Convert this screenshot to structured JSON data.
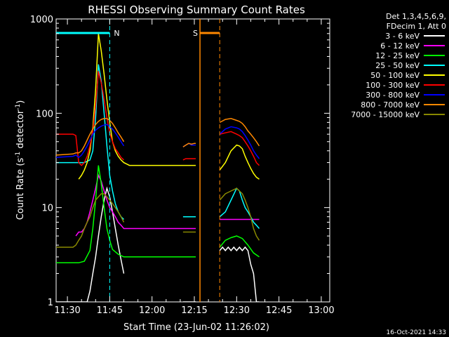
{
  "chart_data": {
    "type": "line",
    "title": "RHESSI Observing Summary Count Rates",
    "xlabel": "Start Time (23-Jun-02 11:26:02)",
    "ylabel_main": "Count Rate (s",
    "ylabel_sup1": "-1",
    "ylabel_mid": " detector",
    "ylabel_sup2": "-1",
    "ylabel_end": ")",
    "x_unit": "minutes after 11:26:02",
    "xlim": [
      0,
      97
    ],
    "ylim": [
      1,
      1000
    ],
    "yscale": "log",
    "x_ticks": [
      {
        "label": "11:30",
        "x": 4
      },
      {
        "label": "11:45",
        "x": 19
      },
      {
        "label": "12:00",
        "x": 34
      },
      {
        "label": "12:15",
        "x": 49
      },
      {
        "label": "12:30",
        "x": 64
      },
      {
        "label": "12:45",
        "x": 79
      },
      {
        "label": "13:00",
        "x": 94
      }
    ],
    "y_ticks": [
      {
        "label": "1",
        "y": 1
      },
      {
        "label": "10",
        "y": 10
      },
      {
        "label": "100",
        "y": 100
      },
      {
        "label": "1000",
        "y": 1000
      }
    ],
    "legend_header": [
      "Det 1,3,4,5,6,9,",
      "FDecim 1, Att 0"
    ],
    "legend_position": "top-right (outside plot)",
    "footer_date": "16-Oct-2021 14:33",
    "gaps": [
      [
        24,
        45
      ],
      [
        49.5,
        58
      ],
      [
        72,
        77
      ]
    ],
    "series": [
      {
        "name": "3 - 6 keV",
        "color": "#ffffff",
        "x": [
          0,
          6,
          7,
          8,
          9,
          10,
          11,
          12,
          13,
          14,
          15,
          16,
          17,
          18,
          19,
          20,
          21,
          22,
          23,
          24,
          45,
          46,
          47,
          48,
          49,
          49.5,
          58,
          59,
          60,
          61,
          62,
          63,
          64,
          65,
          66,
          67,
          68,
          69,
          70,
          71,
          72
        ],
        "y": [
          1,
          1,
          1,
          1,
          1,
          1,
          1,
          1.3,
          2,
          3,
          5,
          8,
          12,
          16,
          13,
          9,
          6,
          4,
          2.8,
          2,
          1,
          1,
          1,
          1,
          1,
          1,
          3.5,
          3.8,
          3.5,
          3.8,
          3.5,
          3.8,
          3.5,
          3.8,
          3.5,
          3.8,
          3.5,
          2.5,
          2,
          1,
          1
        ]
      },
      {
        "name": "6 - 12 keV",
        "color": "#ff00ff",
        "x": [
          7,
          8,
          9,
          10,
          11,
          12,
          13,
          14,
          15,
          16,
          17,
          18,
          19,
          20,
          21,
          22,
          23,
          24,
          25,
          26,
          45,
          46,
          47,
          48,
          49,
          49.5,
          58,
          60,
          62,
          64,
          66,
          68,
          70,
          72
        ],
        "y": [
          5,
          5.5,
          5.5,
          6,
          7,
          9,
          12,
          16,
          22,
          19,
          15,
          12,
          10,
          9,
          8,
          7,
          6.5,
          6,
          6,
          6,
          6,
          6,
          6,
          6,
          6,
          6,
          7.5,
          7.5,
          7.5,
          7.5,
          7.5,
          7.5,
          7.5,
          7.5
        ]
      },
      {
        "name": "12 - 25 keV",
        "color": "#00ff00",
        "x": [
          0,
          6,
          8,
          10,
          12,
          13,
          14,
          15,
          16,
          17,
          18,
          19,
          20,
          22,
          24,
          26,
          45,
          47,
          49,
          49.5,
          58,
          60,
          62,
          64,
          66,
          68,
          70,
          72
        ],
        "y": [
          2.6,
          2.6,
          2.6,
          2.7,
          3.5,
          6,
          12,
          28,
          18,
          10,
          6,
          4.5,
          3.6,
          3.2,
          3.0,
          3.0,
          3.0,
          3.0,
          3.0,
          3.0,
          3.8,
          4.5,
          4.8,
          5,
          4.7,
          4,
          3.3,
          3.0
        ]
      },
      {
        "name": "25 - 50 keV",
        "color": "#00ffff",
        "x": [
          0,
          6,
          7,
          8,
          10,
          12,
          13,
          14,
          15,
          16,
          17,
          18,
          19,
          20,
          21,
          22,
          23,
          24,
          45,
          46,
          47,
          48,
          49,
          49.5,
          58,
          60,
          62,
          64,
          65,
          66,
          67,
          68,
          69,
          70,
          71,
          72
        ],
        "y": [
          30,
          30,
          30,
          30,
          30,
          32,
          40,
          90,
          330,
          220,
          100,
          45,
          22,
          15,
          11,
          9,
          8,
          7.5,
          8,
          8,
          8,
          8,
          8,
          8,
          8,
          9,
          12,
          16,
          15,
          12,
          10,
          9,
          8,
          7,
          6.5,
          6
        ]
      },
      {
        "name": "50 - 100 keV",
        "color": "#ffff00",
        "x": [
          8,
          9,
          10,
          11,
          12,
          13,
          14,
          15,
          16,
          17,
          18,
          19,
          20,
          21,
          22,
          23,
          24,
          25,
          26,
          45,
          46,
          47,
          48,
          49,
          49.5,
          58,
          60,
          62,
          64,
          65,
          66,
          67,
          68,
          69,
          70,
          71,
          72
        ],
        "y": [
          20,
          22,
          25,
          30,
          40,
          70,
          180,
          700,
          460,
          260,
          140,
          80,
          50,
          40,
          35,
          32,
          30,
          29,
          28,
          28,
          28,
          28,
          28,
          28,
          28,
          25,
          30,
          40,
          46,
          45,
          42,
          35,
          30,
          26,
          23,
          21,
          20
        ]
      },
      {
        "name": "100 - 300 keV",
        "color": "#ff0000",
        "x": [
          0,
          6,
          7,
          8,
          9,
          10,
          11,
          12,
          13,
          14,
          15,
          16,
          17,
          18,
          19,
          20,
          21,
          22,
          23,
          24,
          45,
          46,
          47,
          48,
          49,
          49.5,
          58,
          60,
          62,
          64,
          65,
          66,
          67,
          68,
          69,
          70,
          71,
          72
        ],
        "y": [
          60,
          60,
          58,
          30,
          28,
          30,
          35,
          45,
          65,
          120,
          280,
          210,
          140,
          90,
          62,
          50,
          42,
          38,
          34,
          32,
          32,
          33,
          33,
          33,
          33,
          33,
          60,
          62,
          64,
          60,
          58,
          55,
          50,
          45,
          40,
          35,
          30,
          28
        ]
      },
      {
        "name": "300 - 800 keV",
        "color": "#0000ff",
        "x": [
          0,
          6,
          7,
          8,
          9,
          10,
          11,
          12,
          13,
          14,
          15,
          16,
          17,
          18,
          19,
          20,
          21,
          22,
          23,
          24,
          45,
          46,
          47,
          48,
          49,
          49.5,
          58,
          60,
          62,
          64,
          65,
          66,
          67,
          68,
          69,
          70,
          71,
          72
        ],
        "y": [
          34,
          35,
          36,
          34,
          36,
          40,
          45,
          52,
          60,
          66,
          70,
          73,
          75,
          76,
          72,
          68,
          62,
          56,
          50,
          45,
          44,
          46,
          48,
          46,
          46,
          46,
          60,
          68,
          72,
          70,
          68,
          64,
          58,
          52,
          46,
          40,
          36,
          33
        ]
      },
      {
        "name": "800 - 7000 keV",
        "color": "#ff8800",
        "x": [
          0,
          6,
          7,
          8,
          9,
          10,
          11,
          12,
          13,
          14,
          15,
          16,
          17,
          18,
          19,
          20,
          21,
          22,
          23,
          24,
          45,
          46,
          47,
          48,
          49,
          49.5,
          58,
          60,
          62,
          64,
          65,
          66,
          67,
          68,
          69,
          70,
          71,
          72
        ],
        "y": [
          36,
          37,
          38,
          38,
          40,
          45,
          52,
          60,
          68,
          76,
          82,
          86,
          88,
          88,
          84,
          78,
          70,
          62,
          56,
          50,
          44,
          46,
          48,
          47,
          48,
          48,
          80,
          86,
          88,
          84,
          82,
          78,
          72,
          65,
          60,
          55,
          50,
          45
        ]
      },
      {
        "name": "7000 - 15000 keV",
        "color": "#888800",
        "x": [
          0,
          6,
          7,
          8,
          9,
          10,
          11,
          12,
          13,
          14,
          15,
          16,
          17,
          18,
          19,
          20,
          21,
          22,
          23,
          24,
          45,
          46,
          47,
          48,
          49,
          49.5,
          58,
          60,
          62,
          64,
          65,
          66,
          67,
          68,
          69,
          70,
          71,
          72
        ],
        "y": [
          3.8,
          3.8,
          4,
          4.5,
          5,
          6,
          7,
          8,
          10,
          12,
          13,
          14,
          14,
          13,
          12,
          11,
          10,
          9,
          8,
          7,
          5.5,
          5.5,
          5.5,
          5.5,
          5.5,
          5.5,
          12,
          14,
          15,
          16,
          15,
          14,
          12,
          10,
          8,
          6,
          5,
          4.5
        ]
      }
    ],
    "markers": [
      {
        "label": "N",
        "color": "#00ffff",
        "segments": [
          [
            0,
            19
          ]
        ],
        "dashed_x": [
          19
        ]
      },
      {
        "label": "S",
        "color": "#ff8800",
        "segments": [
          [
            51,
            58
          ]
        ],
        "solid_x": [
          51
        ],
        "dashed_x": [
          58
        ]
      }
    ]
  }
}
